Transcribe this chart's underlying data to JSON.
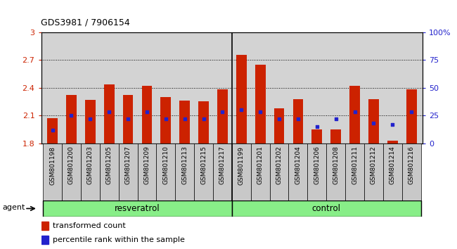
{
  "title": "GDS3981 / 7906154",
  "samples": [
    "GSM801198",
    "GSM801200",
    "GSM801203",
    "GSM801205",
    "GSM801207",
    "GSM801209",
    "GSM801210",
    "GSM801213",
    "GSM801215",
    "GSM801217",
    "GSM801199",
    "GSM801201",
    "GSM801202",
    "GSM801204",
    "GSM801206",
    "GSM801208",
    "GSM801211",
    "GSM801212",
    "GSM801214",
    "GSM801216"
  ],
  "transformed_count": [
    2.07,
    2.32,
    2.27,
    2.44,
    2.32,
    2.42,
    2.3,
    2.26,
    2.25,
    2.38,
    2.76,
    2.65,
    2.18,
    2.28,
    1.95,
    1.95,
    2.42,
    2.28,
    1.83,
    2.38
  ],
  "percentile_rank": [
    12,
    25,
    22,
    28,
    22,
    28,
    22,
    22,
    22,
    28,
    30,
    28,
    22,
    22,
    15,
    22,
    28,
    18,
    17,
    28
  ],
  "resveratrol_count": 10,
  "control_count": 10,
  "bar_bottom": 1.8,
  "ylim_left": [
    1.8,
    3.0
  ],
  "ylim_right": [
    0,
    100
  ],
  "yticks_left": [
    1.8,
    2.1,
    2.4,
    2.7,
    3.0
  ],
  "ytick_labels_left": [
    "1.8",
    "2.1",
    "2.4",
    "2.7",
    "3"
  ],
  "yticks_right": [
    0,
    25,
    50,
    75,
    100
  ],
  "ytick_labels_right": [
    "0",
    "25",
    "50",
    "75",
    "100%"
  ],
  "bar_color": "#cc2200",
  "dot_color": "#2222cc",
  "grid_linestyle": "dotted",
  "bg_color": "#d3d3d3",
  "xtick_bg_color": "#c8c8c8",
  "group_box_color": "#88ee88",
  "legend_red": "transformed count",
  "legend_blue": "percentile rank within the sample",
  "agent_label": "agent",
  "left_axis_color": "#cc2200",
  "right_axis_color": "#2222cc",
  "title_fontsize": 9,
  "tick_fontsize": 7,
  "bar_width": 0.55
}
